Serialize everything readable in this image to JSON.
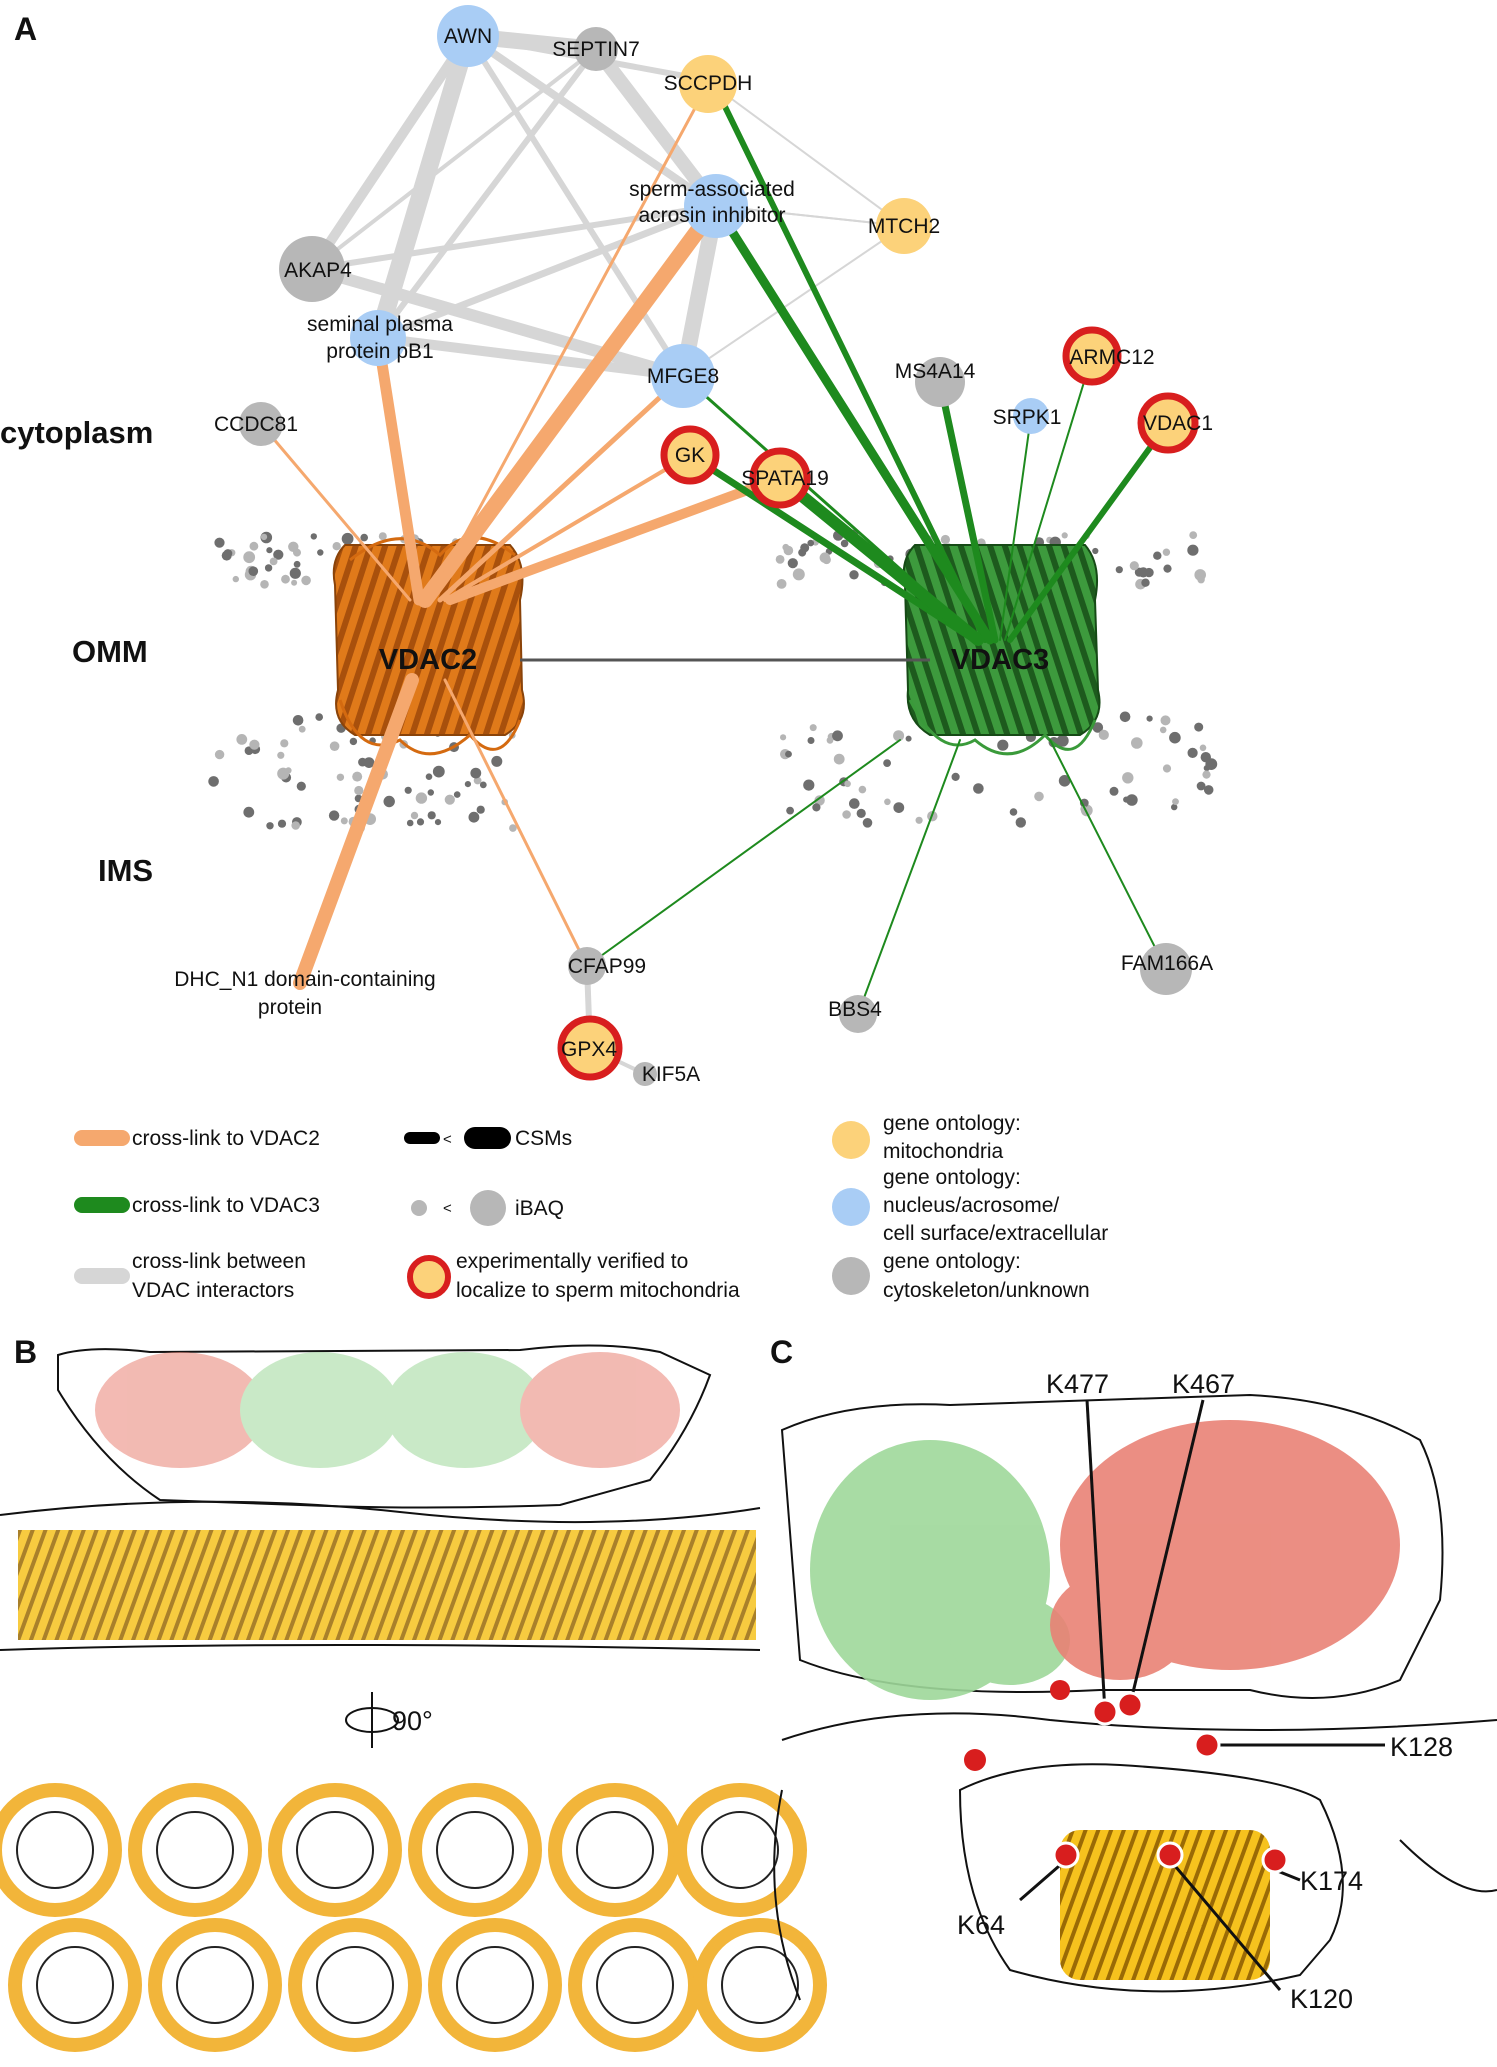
{
  "panels": {
    "a": "A",
    "b": "B",
    "c": "C"
  },
  "zones": {
    "cytoplasm": "cytoplasm",
    "omm": "OMM",
    "ims": "IMS"
  },
  "proteins": {
    "vdac2": "VDAC2",
    "vdac3": "VDAC3"
  },
  "nodes": {
    "awn": "AWN",
    "septin7": "SEPTIN7",
    "sccpdh": "SCCPDH",
    "sperm_inhib_1": "sperm-associated",
    "sperm_inhib_2": "acrosin inhibitor",
    "mtch2": "MTCH2",
    "akap4": "AKAP4",
    "pb1_1": "seminal plasma",
    "pb1_2": "protein pB1",
    "mfge8": "MFGE8",
    "ms4a14": "MS4A14",
    "armc12": "ARMC12",
    "srpk1": "SRPK1",
    "vdac1": "VDAC1",
    "ccdc81": "CCDC81",
    "gk": "GK",
    "spata19": "SPATA19",
    "dhc_1": "DHC_N1 domain-containing",
    "dhc_2": "protein",
    "cfap99": "CFAP99",
    "gpx4": "GPX4",
    "kif5a": "KIF5A",
    "bbs4": "BBS4",
    "fam166a": "FAM166A"
  },
  "legend": {
    "vdac2_link": "cross-link to VDAC2",
    "vdac3_link": "cross-link to VDAC3",
    "between_1": "cross-link between",
    "between_2": "VDAC interactors",
    "less": "<",
    "csms": "CSMs",
    "ibaq": "iBAQ",
    "verified_1": "experimentally verified to",
    "verified_2": "localize to sperm mitochondria",
    "go_mito_1": "gene ontology:",
    "go_mito_2": "mitochondria",
    "go_nuc_1": "gene ontology:",
    "go_nuc_2": "nucleus/acrosome/",
    "go_nuc_3": "cell surface/extracellular",
    "go_cyto_1": "gene ontology:",
    "go_cyto_2": "cytoskeleton/unknown"
  },
  "rotation_label": "90°",
  "residues": {
    "k477": "K477",
    "k467": "K467",
    "k128": "K128",
    "k174": "K174",
    "k64": "K64",
    "k120": "K120"
  },
  "colors": {
    "vdac2": "#f5a86e",
    "vdac3": "#1e8a1e",
    "between": "#d6d6d6",
    "mito": "#fcd27a",
    "nucleus": "#a9cdf5",
    "unknown": "#b7b7b7",
    "verified_ring": "#d81e1e",
    "yellow_structure": "#f6b915",
    "green_structure": "#9ed89a",
    "salmon_structure": "#e98275"
  }
}
